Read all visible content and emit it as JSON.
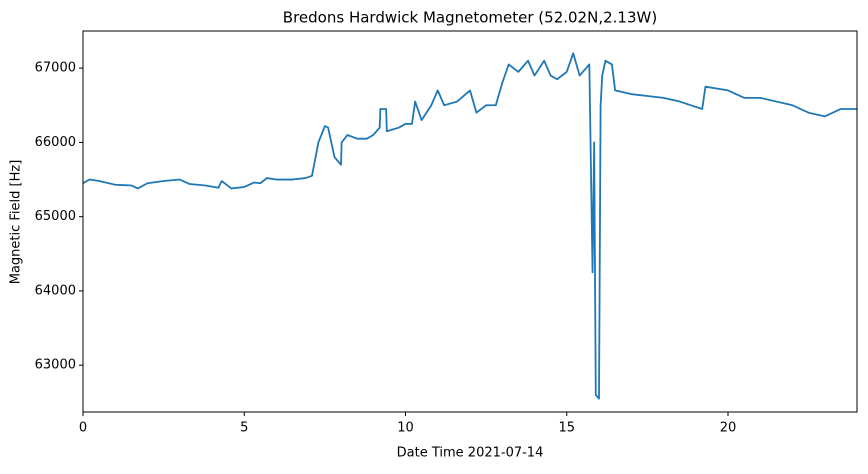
{
  "chart_data": {
    "type": "line",
    "title": "Bredons Hardwick Magnetometer (52.02N,2.13W)",
    "x_label": "Date Time 2021-07-14",
    "y_label": "Magnetic Field [Hz]",
    "xlim": [
      0,
      24
    ],
    "xticks": [
      0,
      5,
      10,
      15,
      20
    ],
    "ylim": [
      62370,
      67500
    ],
    "yticks": [
      63000,
      64000,
      65000,
      66000,
      67000
    ],
    "grid": false,
    "series": [
      {
        "color": "#1f77b4",
        "x": [
          0,
          0.2,
          0.5,
          1,
          1.5,
          1.7,
          2,
          2.5,
          3,
          3.3,
          3.8,
          4.2,
          4.3,
          4.6,
          5,
          5.3,
          5.5,
          5.7,
          6,
          6.5,
          6.9,
          7.1,
          7.3,
          7.5,
          7.6,
          7.8,
          8,
          8.02,
          8.2,
          8.5,
          8.8,
          9,
          9.2,
          9.22,
          9.4,
          9.42,
          9.8,
          10,
          10.2,
          10.3,
          10.5,
          10.8,
          11,
          11.2,
          11.6,
          12,
          12.2,
          12.5,
          12.8,
          13,
          13.2,
          13.5,
          13.8,
          14,
          14.3,
          14.5,
          14.7,
          15,
          15.2,
          15.4,
          15.7,
          15.8,
          15.85,
          15.9,
          16,
          16.05,
          16.1,
          16.2,
          16.4,
          16.5,
          17,
          18,
          18.5,
          19.2,
          19.3,
          20,
          20.5,
          21,
          22,
          22.5,
          23,
          23.5,
          24
        ],
        "values": [
          65450,
          65500,
          65480,
          65430,
          65420,
          65380,
          65450,
          65480,
          65500,
          65440,
          65420,
          65390,
          65480,
          65380,
          65400,
          65460,
          65450,
          65520,
          65500,
          65500,
          65520,
          65550,
          66000,
          66220,
          66200,
          65800,
          65700,
          66000,
          66100,
          66050,
          66050,
          66100,
          66200,
          66450,
          66450,
          66150,
          66200,
          66250,
          66250,
          66550,
          66300,
          66500,
          66700,
          66500,
          66550,
          66700,
          66400,
          66500,
          66500,
          66800,
          67050,
          66950,
          67100,
          66900,
          67100,
          66900,
          66850,
          66950,
          67200,
          66900,
          67050,
          64250,
          66000,
          62600,
          62550,
          66500,
          66900,
          67100,
          67050,
          66700,
          66650,
          66600,
          66550,
          66450,
          66750,
          66700,
          66600,
          66600,
          66500,
          66400,
          66350,
          66450,
          66450
        ]
      }
    ]
  }
}
